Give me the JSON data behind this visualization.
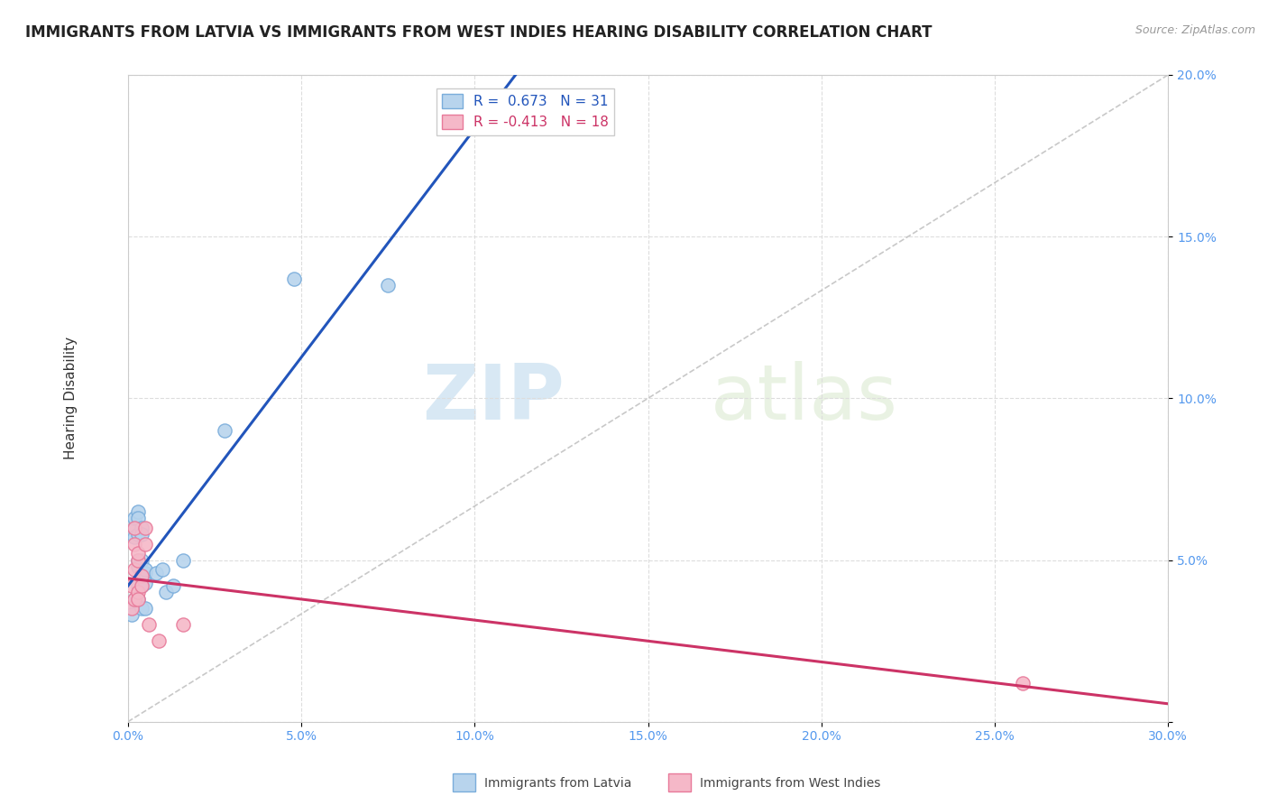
{
  "title": "IMMIGRANTS FROM LATVIA VS IMMIGRANTS FROM WEST INDIES HEARING DISABILITY CORRELATION CHART",
  "source": "Source: ZipAtlas.com",
  "ylabel": "Hearing Disability",
  "xlim": [
    0,
    0.3
  ],
  "ylim": [
    0,
    0.2
  ],
  "xticks": [
    0.0,
    0.05,
    0.1,
    0.15,
    0.2,
    0.25,
    0.3
  ],
  "yticks": [
    0.0,
    0.05,
    0.1,
    0.15,
    0.2
  ],
  "latvia_color": "#b8d4ed",
  "latvia_edge_color": "#7aaddb",
  "west_indies_color": "#f5b8c8",
  "west_indies_edge_color": "#e87a9a",
  "latvia_R": 0.673,
  "latvia_N": 31,
  "west_indies_R": -0.413,
  "west_indies_N": 18,
  "latvia_line_color": "#2255bb",
  "west_indies_line_color": "#cc3366",
  "ref_line_color": "#bbbbbb",
  "background_color": "#ffffff",
  "grid_color": "#dddddd",
  "watermark_zip": "ZIP",
  "watermark_atlas": "atlas",
  "latvia_points": [
    [
      0.001,
      0.036
    ],
    [
      0.001,
      0.033
    ],
    [
      0.002,
      0.038
    ],
    [
      0.002,
      0.06
    ],
    [
      0.002,
      0.057
    ],
    [
      0.002,
      0.063
    ],
    [
      0.003,
      0.065
    ],
    [
      0.003,
      0.058
    ],
    [
      0.003,
      0.038
    ],
    [
      0.003,
      0.063
    ],
    [
      0.003,
      0.05
    ],
    [
      0.003,
      0.048
    ],
    [
      0.003,
      0.042
    ],
    [
      0.004,
      0.035
    ],
    [
      0.004,
      0.05
    ],
    [
      0.004,
      0.06
    ],
    [
      0.004,
      0.058
    ],
    [
      0.004,
      0.042
    ],
    [
      0.005,
      0.046
    ],
    [
      0.005,
      0.035
    ],
    [
      0.005,
      0.047
    ],
    [
      0.005,
      0.043
    ],
    [
      0.008,
      0.046
    ],
    [
      0.01,
      0.047
    ],
    [
      0.011,
      0.04
    ],
    [
      0.013,
      0.042
    ],
    [
      0.016,
      0.05
    ],
    [
      0.028,
      0.09
    ],
    [
      0.048,
      0.137
    ],
    [
      0.075,
      0.135
    ],
    [
      0.1,
      0.185
    ]
  ],
  "west_indies_points": [
    [
      0.001,
      0.035
    ],
    [
      0.001,
      0.042
    ],
    [
      0.002,
      0.038
    ],
    [
      0.002,
      0.047
    ],
    [
      0.002,
      0.06
    ],
    [
      0.002,
      0.055
    ],
    [
      0.003,
      0.05
    ],
    [
      0.003,
      0.052
    ],
    [
      0.003,
      0.04
    ],
    [
      0.003,
      0.038
    ],
    [
      0.004,
      0.045
    ],
    [
      0.004,
      0.042
    ],
    [
      0.005,
      0.06
    ],
    [
      0.005,
      0.055
    ],
    [
      0.006,
      0.03
    ],
    [
      0.009,
      0.025
    ],
    [
      0.016,
      0.03
    ],
    [
      0.258,
      0.012
    ]
  ],
  "title_fontsize": 12,
  "axis_fontsize": 11,
  "tick_fontsize": 10,
  "legend_fontsize": 11,
  "marker_size": 120
}
